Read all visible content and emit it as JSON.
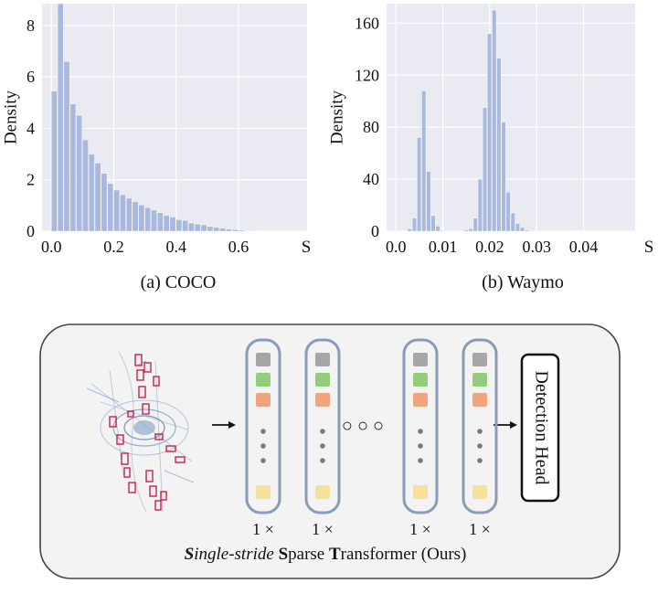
{
  "chart_data": [
    {
      "type": "bar",
      "subtitle": "(a) COCO",
      "ylabel": "Density",
      "xlabel": "S",
      "xlim": [
        -0.03,
        0.82
      ],
      "ylim": [
        0,
        8.85
      ],
      "xticks": [
        0.0,
        0.2,
        0.4,
        0.6
      ],
      "xtick_labels": [
        "0.0",
        "0.2",
        "0.4",
        "0.6"
      ],
      "yticks": [
        0,
        2,
        4,
        6,
        8
      ],
      "ytick_labels": [
        "0",
        "2",
        "4",
        "6",
        "8"
      ],
      "bin_start": 0.0,
      "bin_width": 0.02,
      "values": [
        5.45,
        8.85,
        6.6,
        4.95,
        4.5,
        3.55,
        3.0,
        2.65,
        2.25,
        1.85,
        1.6,
        1.42,
        1.28,
        1.15,
        1.02,
        0.92,
        0.82,
        0.72,
        0.62,
        0.55,
        0.45,
        0.42,
        0.32,
        0.28,
        0.25,
        0.18,
        0.15,
        0.12,
        0.08,
        0.06,
        0.04,
        0.02,
        0.01
      ],
      "color": "#a9b9dd",
      "grid": true,
      "background": "#eaeaf2"
    },
    {
      "type": "bar",
      "subtitle": "(b) Waymo",
      "ylabel": "Density",
      "xlabel": "S",
      "xlim": [
        -0.002,
        0.051
      ],
      "ylim": [
        0,
        175
      ],
      "xticks": [
        0.0,
        0.01,
        0.02,
        0.03,
        0.04
      ],
      "xtick_labels": [
        "0.0",
        "0.01",
        "0.02",
        "0.03",
        "0.04"
      ],
      "yticks": [
        0,
        40,
        80,
        120,
        160
      ],
      "ytick_labels": [
        "0",
        "40",
        "80",
        "120",
        "160"
      ],
      "bin_start": 0.0025,
      "bin_width": 0.001,
      "values": [
        2,
        10,
        72,
        108,
        46,
        12,
        4,
        0.5,
        0,
        0,
        0,
        0,
        1,
        2,
        10,
        40,
        95,
        152,
        170,
        133,
        84,
        30,
        14,
        6,
        3,
        1,
        0.5
      ],
      "color": "#a9b9dd",
      "grid": true,
      "background": "#eaeaf2"
    }
  ],
  "diagram": {
    "caption_parts": [
      {
        "text": "S",
        "style": "bold-italic"
      },
      {
        "text": "ingle-stride ",
        "style": "italic"
      },
      {
        "text": "S",
        "style": "bold"
      },
      {
        "text": "parse ",
        "style": "normal"
      },
      {
        "text": "T",
        "style": "bold"
      },
      {
        "text": "ransformer (Ours)",
        "style": "normal"
      }
    ],
    "ellipsis_between": "○ ○ ○",
    "block_labels": [
      "1 ×",
      "1 ×",
      "1 ×",
      "1 ×"
    ],
    "head_label": "Detection Head",
    "token_colors": [
      "#a6a6a6",
      "#93cc7b",
      "#f0a67d",
      "#f5e19a"
    ],
    "dot_color": "#7a7a7a",
    "block_border_color": "#8a9bb8",
    "panel_background": "#f3f3f3"
  }
}
